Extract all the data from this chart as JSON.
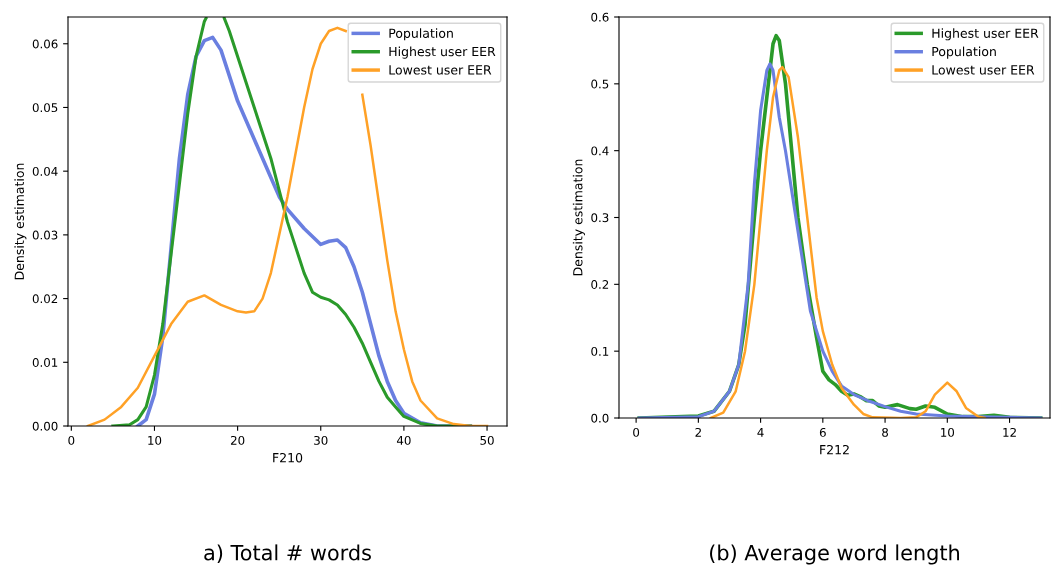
{
  "chart_data": [
    {
      "type": "line",
      "title": "a) Total # words",
      "xlabel": "F210",
      "ylabel": "Density estimation",
      "xlim": [
        -0.4,
        52.4
      ],
      "ylim": [
        0,
        0.0642
      ],
      "xticks": [
        0,
        10,
        20,
        30,
        40,
        50
      ],
      "yticks": [
        {
          "value": 0,
          "label": "0.00"
        },
        0.01,
        0.02,
        0.03,
        0.04,
        0.05,
        0.06
      ],
      "grid": false,
      "legend": "top right",
      "line_style": "solid",
      "series": [
        {
          "name": "Population",
          "color": "#6a7fe0",
          "x": [
            8,
            9,
            10,
            11,
            12,
            13,
            14,
            15,
            16,
            17,
            18,
            19,
            20,
            22,
            24,
            25,
            26,
            28,
            30,
            31,
            32,
            33,
            34,
            35,
            36,
            37,
            38,
            39,
            40,
            42,
            44,
            48
          ],
          "values": [
            0,
            0.001,
            0.005,
            0.014,
            0.028,
            0.042,
            0.052,
            0.058,
            0.0605,
            0.061,
            0.059,
            0.055,
            0.051,
            0.045,
            0.039,
            0.036,
            0.034,
            0.031,
            0.0285,
            0.029,
            0.0292,
            0.028,
            0.025,
            0.021,
            0.016,
            0.011,
            0.007,
            0.004,
            0.002,
            0.0005,
            0,
            0
          ]
        },
        {
          "name": "Highest user EER",
          "color": "#2a9a2a",
          "x": [
            5,
            7,
            8,
            9,
            10,
            11,
            12,
            13,
            14,
            15,
            16,
            16.2,
            17,
            18.4,
            19,
            20,
            22,
            24,
            25,
            26,
            27,
            28,
            29,
            30,
            31,
            32,
            33,
            34,
            35,
            36,
            37,
            38,
            39,
            40,
            42,
            44,
            48
          ],
          "values": [
            0,
            0.0002,
            0.001,
            0.003,
            0.008,
            0.016,
            0.027,
            0.038,
            0.049,
            0.058,
            0.0635,
            0.064,
            null,
            0.064,
            0.062,
            0.058,
            0.05,
            0.042,
            0.037,
            0.032,
            0.028,
            0.024,
            0.021,
            0.0202,
            0.0198,
            0.019,
            0.0175,
            0.0155,
            0.013,
            0.01,
            0.007,
            0.0045,
            0.003,
            0.0015,
            0.0004,
            0,
            0
          ]
        },
        {
          "name": "Lowest user EER",
          "color": "#ffa126",
          "x": [
            2,
            4,
            6,
            8,
            10,
            12,
            14,
            16,
            18,
            20,
            21,
            22,
            23,
            24,
            25,
            26,
            27,
            28,
            29,
            30,
            31,
            32,
            33,
            34,
            35,
            36,
            37,
            38,
            39,
            40,
            41,
            42,
            44,
            46,
            48,
            50
          ],
          "values": [
            0,
            0.001,
            0.003,
            0.006,
            0.011,
            0.016,
            0.0195,
            0.0205,
            0.019,
            0.018,
            0.0178,
            0.018,
            0.02,
            0.024,
            0.03,
            0.036,
            0.043,
            0.05,
            0.056,
            0.06,
            0.062,
            0.0625,
            0.062,
            null,
            0.052,
            0.044,
            0.035,
            0.026,
            0.018,
            0.012,
            0.007,
            0.004,
            0.0012,
            0.0003,
            0,
            0
          ]
        }
      ]
    },
    {
      "type": "line",
      "title": "(b) Average word length",
      "xlabel": "F212",
      "ylabel": "Density estimation",
      "xlim": [
        -0.55,
        13.3
      ],
      "ylim": [
        0,
        0.6
      ],
      "xticks": [
        0,
        2,
        4,
        6,
        8,
        10,
        12
      ],
      "yticks": [
        {
          "value": 0,
          "label": "0.0"
        },
        0.1,
        0.2,
        0.3,
        0.4,
        0.5,
        0.6
      ],
      "grid": false,
      "legend": "top right",
      "line_style": "solid",
      "series": [
        {
          "name": "Highest user EER",
          "color": "#2a9a2a",
          "x": [
            0.1,
            1.5,
            2,
            2.5,
            3,
            3.3,
            3.5,
            3.8,
            4,
            4.2,
            4.4,
            4.5,
            4.6,
            4.8,
            5,
            5.2,
            5.5,
            5.8,
            6,
            6.2,
            6.4,
            6.6,
            6.8,
            7,
            7.2,
            7.4,
            7.6,
            7.8,
            8,
            8.4,
            8.8,
            9.0,
            9.3,
            9.6,
            10,
            10.5,
            11,
            11.5,
            12,
            13
          ],
          "values": [
            0,
            0.002,
            0.003,
            0.01,
            0.04,
            0.08,
            0.14,
            0.3,
            0.4,
            0.48,
            0.56,
            0.572,
            0.565,
            0.5,
            0.4,
            0.3,
            0.2,
            0.12,
            0.07,
            0.057,
            0.05,
            0.04,
            0.034,
            0.036,
            0.032,
            0.026,
            0.026,
            0.018,
            0.016,
            0.02,
            0.014,
            0.013,
            0.018,
            0.016,
            0.006,
            0.002,
            0.002,
            0.004,
            0.001,
            0
          ]
        },
        {
          "name": "Population",
          "color": "#6a7fe0",
          "x": [
            0.1,
            2,
            2.5,
            3,
            3.3,
            3.6,
            3.8,
            4,
            4.2,
            4.3,
            4.4,
            4.6,
            4.8,
            5,
            5.3,
            5.6,
            6,
            6.3,
            6.6,
            7,
            7.5,
            8,
            8.5,
            9,
            10,
            11,
            12,
            13
          ],
          "values": [
            0,
            0.002,
            0.01,
            0.04,
            0.08,
            0.2,
            0.35,
            0.46,
            0.52,
            0.53,
            0.52,
            0.45,
            0.4,
            0.34,
            0.25,
            0.16,
            0.1,
            0.07,
            0.048,
            0.035,
            0.025,
            0.017,
            0.01,
            0.006,
            0.003,
            0.002,
            0.001,
            0
          ]
        },
        {
          "name": "Lowest user EER",
          "color": "#ffa126",
          "x": [
            2.4,
            2.8,
            3.2,
            3.5,
            3.8,
            4,
            4.2,
            4.4,
            4.6,
            4.7,
            4.9,
            5.2,
            5.5,
            5.8,
            6,
            6.3,
            6.6,
            7,
            7.3,
            7.6,
            8.5,
            9,
            9.3,
            9.6,
            10,
            10.3,
            10.6,
            11,
            11.2
          ],
          "values": [
            0,
            0.008,
            0.04,
            0.1,
            0.2,
            0.3,
            0.4,
            0.48,
            0.52,
            0.525,
            0.51,
            0.42,
            0.3,
            0.18,
            0.13,
            0.08,
            0.045,
            0.02,
            0.006,
            0.001,
            0,
            0.001,
            0.01,
            0.035,
            0.053,
            0.04,
            0.015,
            0.002,
            0
          ]
        }
      ]
    }
  ]
}
